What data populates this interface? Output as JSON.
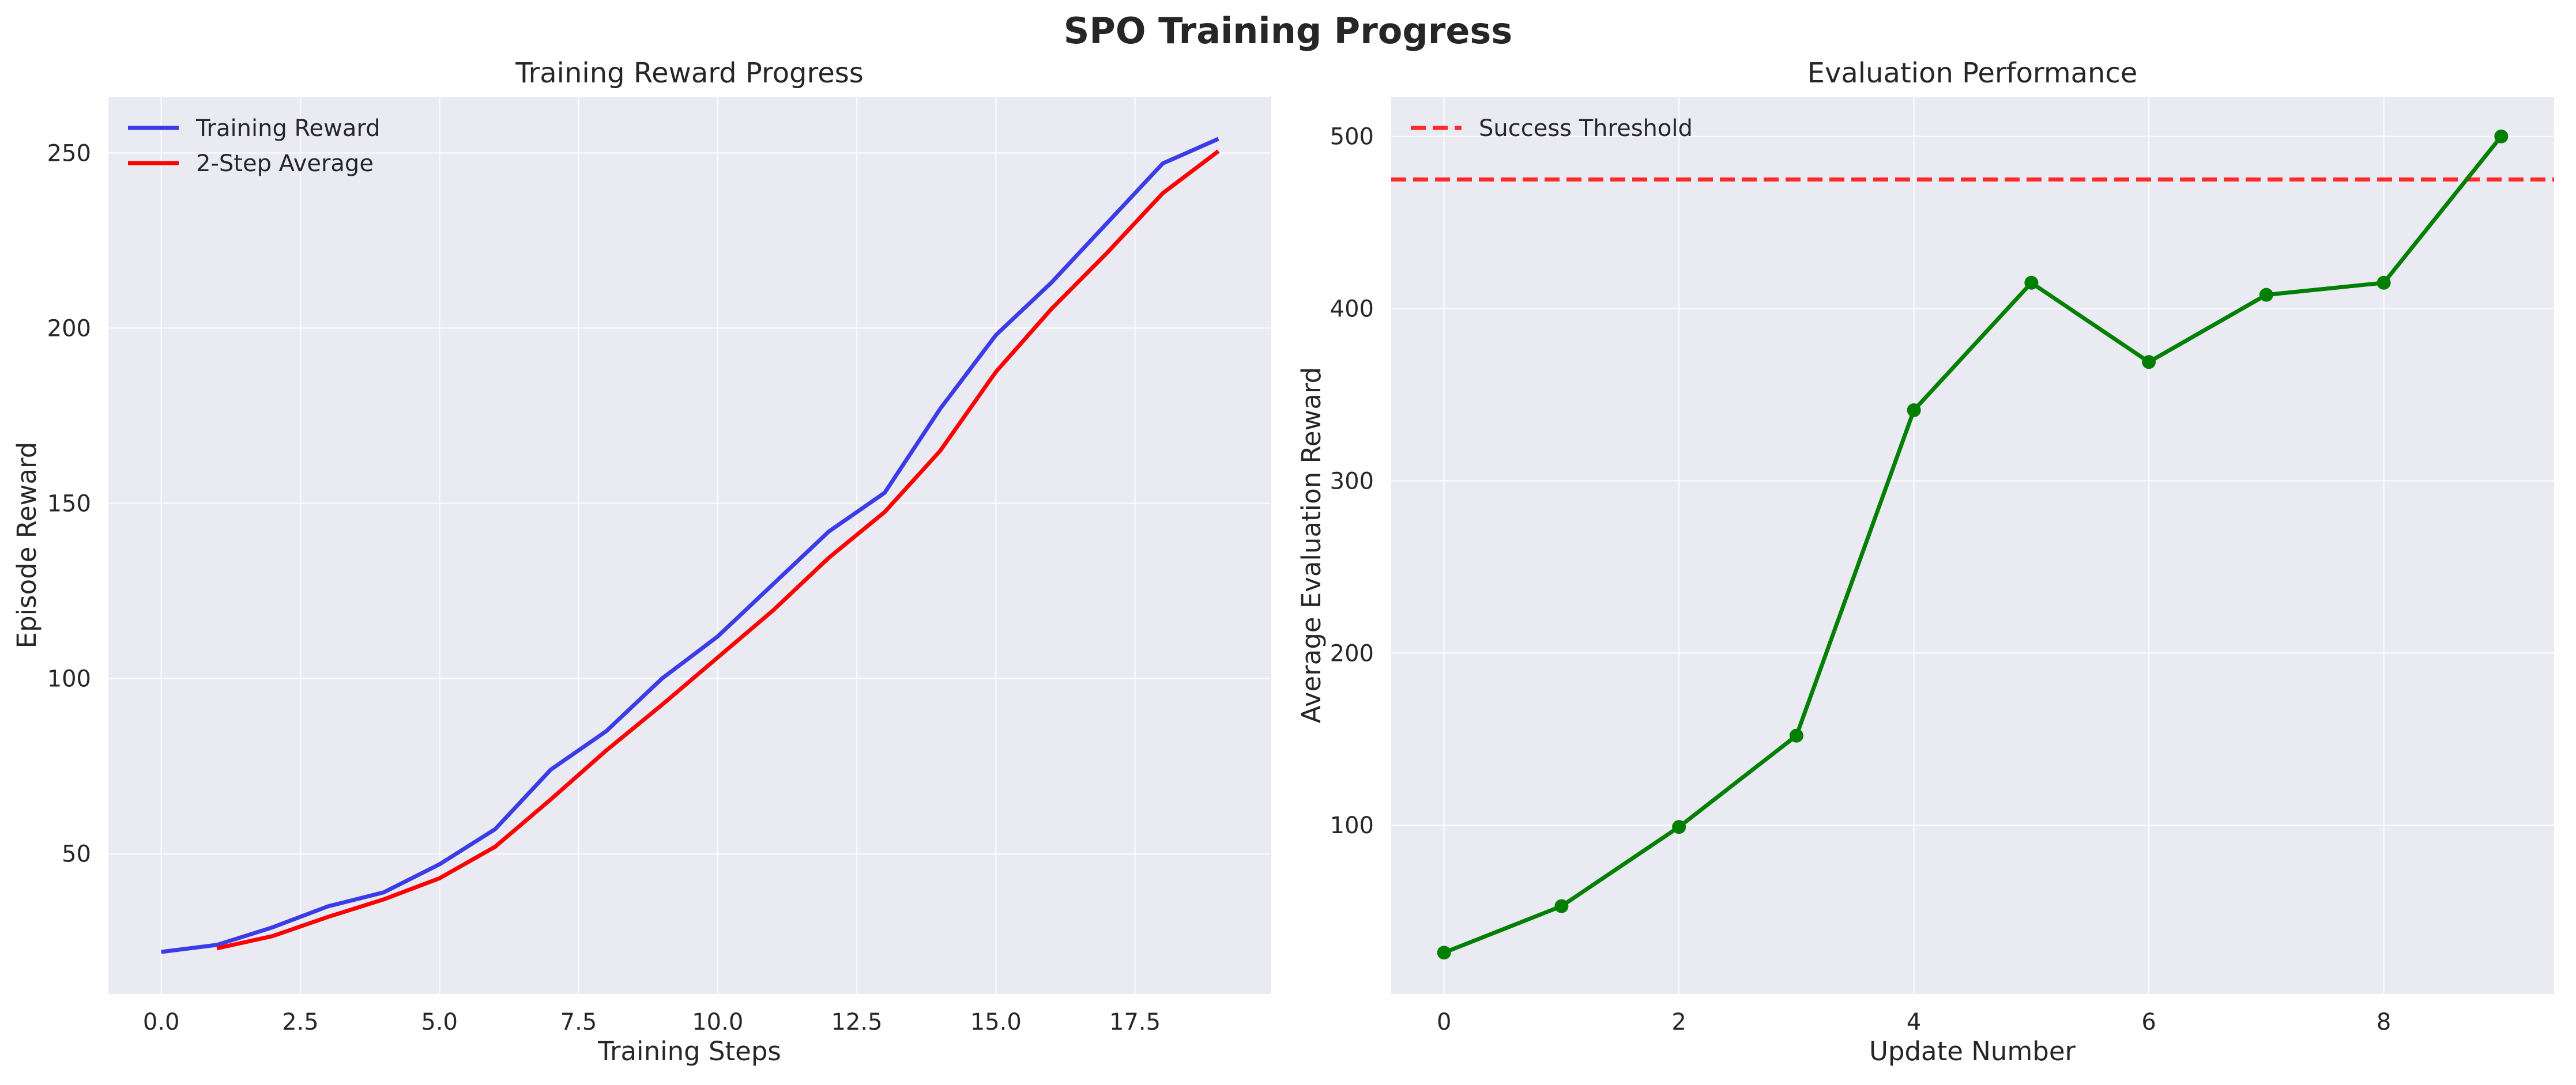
{
  "title": "SPO Training Progress",
  "colors": {
    "training": "#3b3be8",
    "average": "#ff0000",
    "eval": "#007f00",
    "threshold": "#ff2a2a",
    "background": "#eaeaf2"
  },
  "chart_data": [
    {
      "type": "line",
      "title": "Training Reward Progress",
      "xlabel": "Training Steps",
      "ylabel": "Episode Reward",
      "xlim": [
        -0.95,
        19.95
      ],
      "ylim": [
        10,
        266
      ],
      "xticks": [
        0,
        2.5,
        5,
        7.5,
        10,
        12.5,
        15,
        17.5
      ],
      "xtick_labels": [
        "0.0",
        "2.5",
        "5.0",
        "7.5",
        "10.0",
        "12.5",
        "15.0",
        "17.5"
      ],
      "yticks": [
        50,
        100,
        150,
        200,
        250
      ],
      "ytick_labels": [
        "50",
        "100",
        "150",
        "200",
        "250"
      ],
      "grid": true,
      "legend_position": "top-left",
      "series": [
        {
          "name": "Training Reward",
          "color": "#3b3be8",
          "x": [
            0,
            1,
            2,
            3,
            4,
            5,
            6,
            7,
            8,
            9,
            10,
            11,
            12,
            13,
            14,
            15,
            16,
            17,
            18,
            19
          ],
          "values": [
            22,
            24,
            29,
            35,
            39,
            47,
            57,
            74,
            85,
            100,
            112,
            127,
            142,
            153,
            177,
            198,
            213,
            230,
            247,
            254
          ]
        },
        {
          "name": "2-Step Average",
          "color": "#ff0000",
          "x": [
            1,
            2,
            3,
            4,
            5,
            6,
            7,
            8,
            9,
            10,
            11,
            12,
            13,
            14,
            15,
            16,
            17,
            18,
            19
          ],
          "values": [
            23,
            26.5,
            32,
            37,
            43,
            52,
            65.5,
            79.5,
            92.5,
            106,
            119.5,
            134.5,
            147.5,
            165,
            187.5,
            205.5,
            221.5,
            238.5,
            250.5
          ]
        }
      ]
    },
    {
      "type": "line",
      "title": "Evaluation Performance",
      "xlabel": "Update Number",
      "ylabel": "Average Evaluation Reward",
      "xlim": [
        -0.45,
        9.45
      ],
      "ylim": [
        2,
        523
      ],
      "xticks": [
        0,
        2,
        4,
        6,
        8
      ],
      "xtick_labels": [
        "0",
        "2",
        "4",
        "6",
        "8"
      ],
      "yticks": [
        100,
        200,
        300,
        400,
        500
      ],
      "ytick_labels": [
        "100",
        "200",
        "300",
        "400",
        "500"
      ],
      "grid": true,
      "legend_position": "top-left",
      "threshold": {
        "name": "Success Threshold",
        "value": 475,
        "color": "#ff2a2a"
      },
      "series": [
        {
          "name": "",
          "color": "#007f00",
          "markers": true,
          "x": [
            0,
            1,
            2,
            3,
            4,
            5,
            6,
            7,
            8,
            9
          ],
          "values": [
            26,
            53,
            99,
            152,
            341,
            415,
            369,
            408,
            415,
            500
          ]
        }
      ]
    }
  ]
}
